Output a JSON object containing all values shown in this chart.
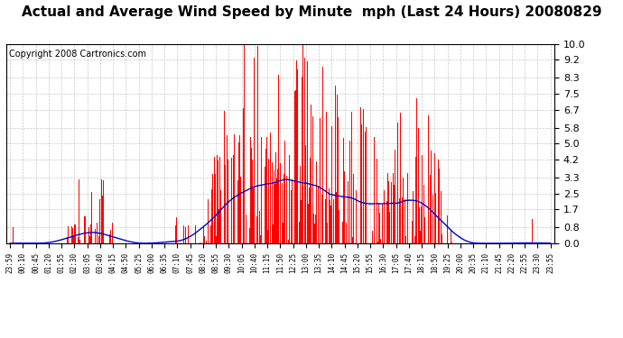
{
  "title": "Actual and Average Wind Speed by Minute  mph (Last 24 Hours) 20080829",
  "copyright": "Copyright 2008 Cartronics.com",
  "yticks": [
    0.0,
    0.8,
    1.7,
    2.5,
    3.3,
    4.2,
    5.0,
    5.8,
    6.7,
    7.5,
    8.3,
    9.2,
    10.0
  ],
  "ylim": [
    0.0,
    10.0
  ],
  "bar_color": "#ff0000",
  "line_color": "#0000cc",
  "bg_color": "#ffffff",
  "grid_color": "#bbbbbb",
  "title_fontsize": 11,
  "copyright_fontsize": 7,
  "xtick_fontsize": 5.5,
  "ytick_fontsize": 8,
  "n_minutes": 1440,
  "xtick_labels": [
    "23:59",
    "00:10",
    "00:45",
    "01:20",
    "01:55",
    "02:30",
    "03:05",
    "03:40",
    "04:15",
    "04:50",
    "05:25",
    "06:00",
    "06:35",
    "07:10",
    "07:45",
    "08:20",
    "08:55",
    "09:30",
    "10:05",
    "10:40",
    "11:15",
    "11:50",
    "12:25",
    "13:00",
    "13:35",
    "14:10",
    "14:45",
    "15:20",
    "15:55",
    "16:30",
    "17:05",
    "17:40",
    "18:15",
    "18:50",
    "19:25",
    "20:00",
    "20:35",
    "21:10",
    "21:45",
    "22:20",
    "22:55",
    "23:30",
    "23:55"
  ]
}
